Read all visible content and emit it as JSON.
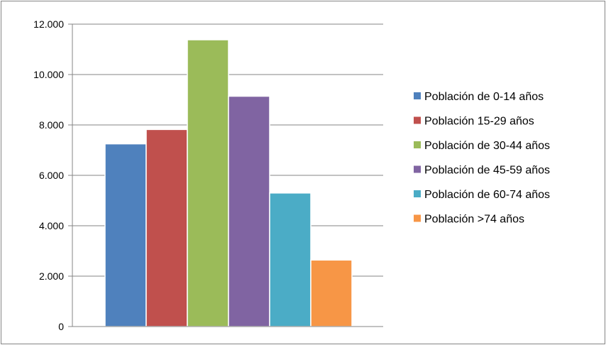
{
  "chart_data": {
    "type": "bar",
    "categories": [
      ""
    ],
    "series": [
      {
        "name": "Población de 0-14 años",
        "values": [
          7250
        ],
        "color": "#4f81bd"
      },
      {
        "name": "Población 15-29 años",
        "values": [
          7820
        ],
        "color": "#c0504d"
      },
      {
        "name": "Población de 30-44 años",
        "values": [
          11380
        ],
        "color": "#9bbb59"
      },
      {
        "name": "Población de 45-59 años",
        "values": [
          9140
        ],
        "color": "#8064a2"
      },
      {
        "name": "Población de 60-74 años",
        "values": [
          5300
        ],
        "color": "#4bacc6"
      },
      {
        "name": "Población >74 años",
        "values": [
          2640
        ],
        "color": "#f79646"
      }
    ],
    "yticks": [
      {
        "value": 0,
        "label": "0"
      },
      {
        "value": 2000,
        "label": "2.000"
      },
      {
        "value": 4000,
        "label": "4.000"
      },
      {
        "value": 6000,
        "label": "6.000"
      },
      {
        "value": 8000,
        "label": "8.000"
      },
      {
        "value": 10000,
        "label": "10.000"
      },
      {
        "value": 12000,
        "label": "12.000"
      }
    ],
    "ylim": [
      0,
      12000
    ],
    "title": "",
    "xlabel": "",
    "ylabel": "",
    "grid": true,
    "legend_position": "right"
  }
}
